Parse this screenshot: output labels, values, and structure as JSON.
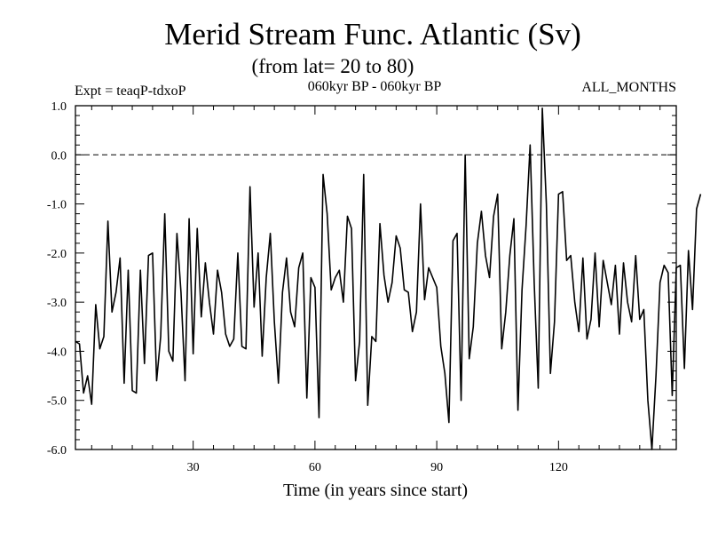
{
  "chart_data": {
    "type": "line",
    "title": "Merid Stream Func. Atlantic (Sv)",
    "subtitle": "(from lat= 20 to 80)",
    "left_label": "Expt = teaqP-tdxoP",
    "center_label": "060kyr BP - 060kyr BP",
    "right_label": "ALL_MONTHS",
    "xlabel": "Time (in years since start)",
    "ylabel": "",
    "xlim": [
      1,
      149
    ],
    "ylim": [
      -6.0,
      1.0
    ],
    "x_ticks": [
      30,
      60,
      90,
      120
    ],
    "x_tick_labels": [
      "30",
      "60",
      "90",
      "120"
    ],
    "y_ticks": [
      1.0,
      0.0,
      -1.0,
      -2.0,
      -3.0,
      -4.0,
      -5.0,
      -6.0
    ],
    "y_tick_labels": [
      "1.0",
      "0.0",
      "-1.0",
      "-2.0",
      "-3.0",
      "-4.0",
      "-5.0",
      "-6.0"
    ],
    "reference_line": {
      "y": 0.0,
      "style": "dashed"
    },
    "series": [
      {
        "name": "Merid Stream Func.",
        "x_start": 1,
        "x_step": 1,
        "values": [
          -3.8,
          -3.85,
          -4.85,
          -4.5,
          -5.08,
          -3.05,
          -3.95,
          -3.7,
          -1.35,
          -3.2,
          -2.8,
          -2.1,
          -4.65,
          -2.35,
          -4.8,
          -4.85,
          -2.35,
          -4.25,
          -2.05,
          -2.0,
          -4.6,
          -3.7,
          -1.2,
          -4.0,
          -4.2,
          -1.6,
          -2.8,
          -4.6,
          -1.3,
          -4.05,
          -1.5,
          -3.3,
          -2.2,
          -3.0,
          -3.65,
          -2.35,
          -2.8,
          -3.65,
          -3.9,
          -3.75,
          -2.0,
          -3.9,
          -3.95,
          -0.65,
          -3.1,
          -2.0,
          -4.1,
          -2.5,
          -1.6,
          -3.4,
          -4.65,
          -2.8,
          -2.1,
          -3.2,
          -3.5,
          -2.3,
          -2.0,
          -4.95,
          -2.5,
          -2.7,
          -5.35,
          -0.4,
          -1.2,
          -2.75,
          -2.5,
          -2.35,
          -3.0,
          -1.25,
          -1.5,
          -4.6,
          -3.8,
          -0.4,
          -5.1,
          -3.7,
          -3.8,
          -1.4,
          -2.45,
          -3.0,
          -2.6,
          -1.65,
          -1.9,
          -2.75,
          -2.8,
          -3.6,
          -3.2,
          -1.0,
          -2.95,
          -2.3,
          -2.5,
          -2.7,
          -3.9,
          -4.45,
          -5.45,
          -1.75,
          -1.6,
          -5.0,
          0.0,
          -4.15,
          -3.5,
          -1.8,
          -1.15,
          -2.05,
          -2.5,
          -1.25,
          -0.8,
          -3.95,
          -3.2,
          -2.05,
          -1.3,
          -5.2,
          -2.75,
          -1.45,
          0.2,
          -2.6,
          -4.75,
          0.95,
          -1.0,
          -4.45,
          -3.4,
          -0.8,
          -0.75,
          -2.15,
          -2.05,
          -3.0,
          -3.6,
          -2.1,
          -3.75,
          -3.35,
          -2.0,
          -3.5,
          -2.15,
          -2.6,
          -3.05,
          -2.25,
          -3.65,
          -2.2,
          -3.0,
          -3.4,
          -2.05,
          -3.35,
          -3.15,
          -5.0,
          -6.0,
          -4.5,
          -2.6,
          -2.25,
          -2.4,
          -4.9,
          -2.3,
          -2.25,
          -4.35,
          -1.95,
          -3.15,
          -1.1,
          -0.8
        ]
      }
    ]
  }
}
